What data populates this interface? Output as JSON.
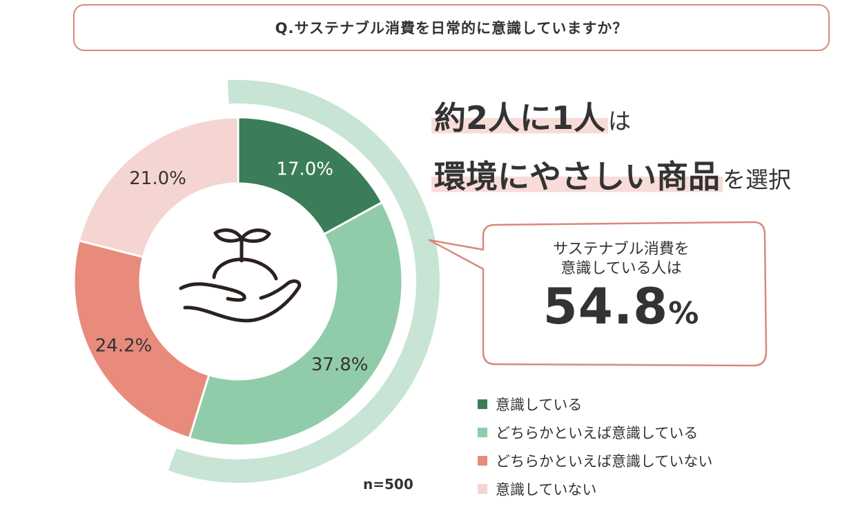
{
  "question": "Q.サステナブル消費を日常的に意識していますか？",
  "headline": {
    "line1_main": "約2人に1人",
    "line1_suffix": "は",
    "line2_main": "環境にやさしい商品",
    "line2_suffix": "を選択"
  },
  "bubble": {
    "line1": "サステナブル消費を",
    "line2": "意識している人は",
    "value": "54.8",
    "unit": "%"
  },
  "sample_size": "n=500",
  "icon": "sprout-in-hand-icon",
  "chart_data": {
    "type": "pie",
    "variant": "donut",
    "categories": [
      "意識している",
      "どちらかといえば意識している",
      "どちらかといえば意識していない",
      "意識していない"
    ],
    "values": [
      17.0,
      37.8,
      24.2,
      21.0
    ],
    "labels": [
      "17.0%",
      "37.8%",
      "24.2%",
      "21.0%"
    ],
    "colors": [
      "#3b7d58",
      "#90cca9",
      "#e88b7c",
      "#f5d5d1"
    ],
    "highlight_total": 54.8,
    "highlight_color": "#c7e4d4",
    "legend_position": "bottom-right"
  }
}
